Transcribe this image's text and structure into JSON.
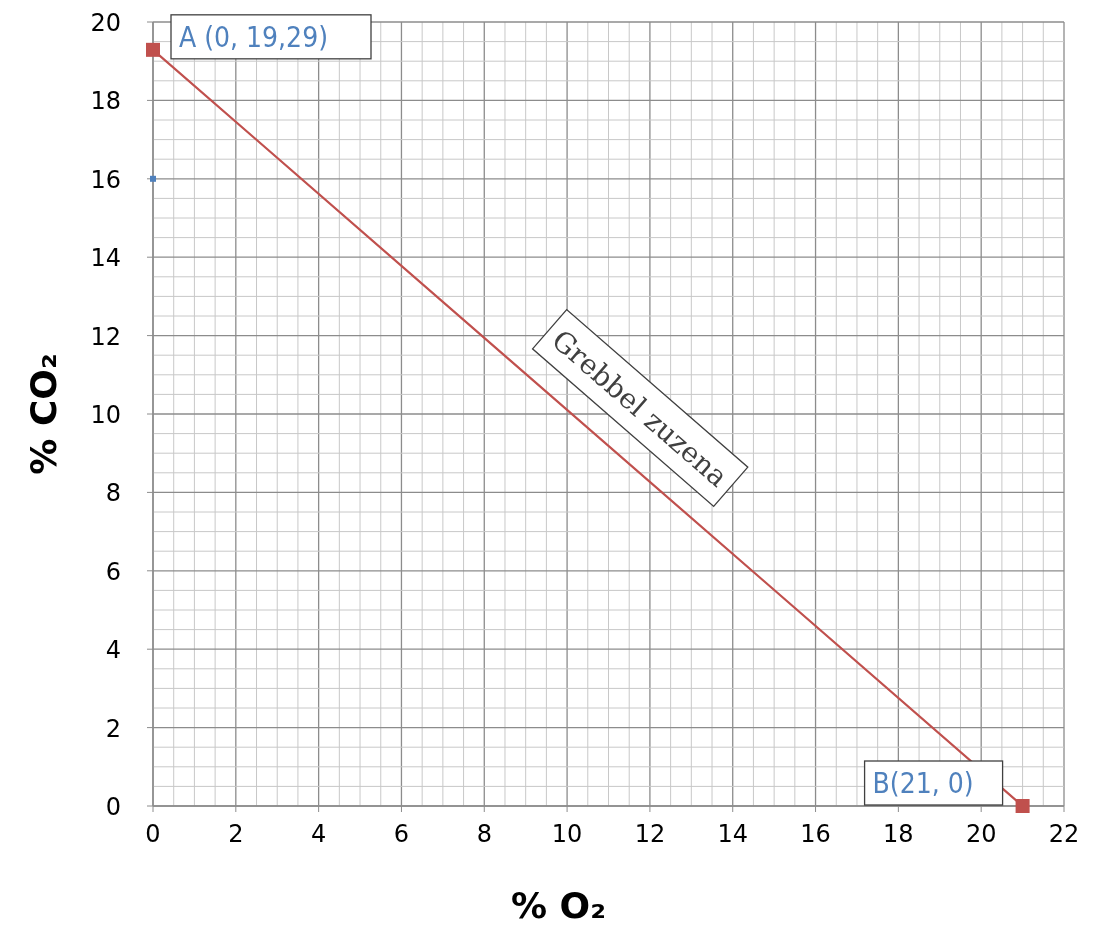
{
  "chart_data": {
    "type": "line",
    "xlabel": "% O₂",
    "ylabel": "% CO₂",
    "xlim": [
      0,
      22
    ],
    "xticks": [
      0,
      2,
      4,
      6,
      8,
      10,
      12,
      14,
      16,
      18,
      20,
      22
    ],
    "ylim": [
      0,
      20
    ],
    "yticks": [
      0,
      2,
      4,
      6,
      8,
      10,
      12,
      14,
      16,
      18,
      20
    ],
    "grid": true,
    "marker": "square",
    "line_style": "solid",
    "x": [
      0,
      21
    ],
    "series": [
      {
        "color": "#c0504d",
        "values": [
          19.29,
          0
        ]
      },
      {
        "type": "scatter",
        "color": "#4f81bd",
        "values": [
          16,
          null
        ]
      }
    ],
    "annotations": [
      {
        "text": "A (0, 19,29)",
        "x": 0,
        "y": 19.29
      },
      {
        "text": "B(21, 0)",
        "x": 21,
        "y": 0
      },
      "Grebbel zuzena"
    ]
  }
}
